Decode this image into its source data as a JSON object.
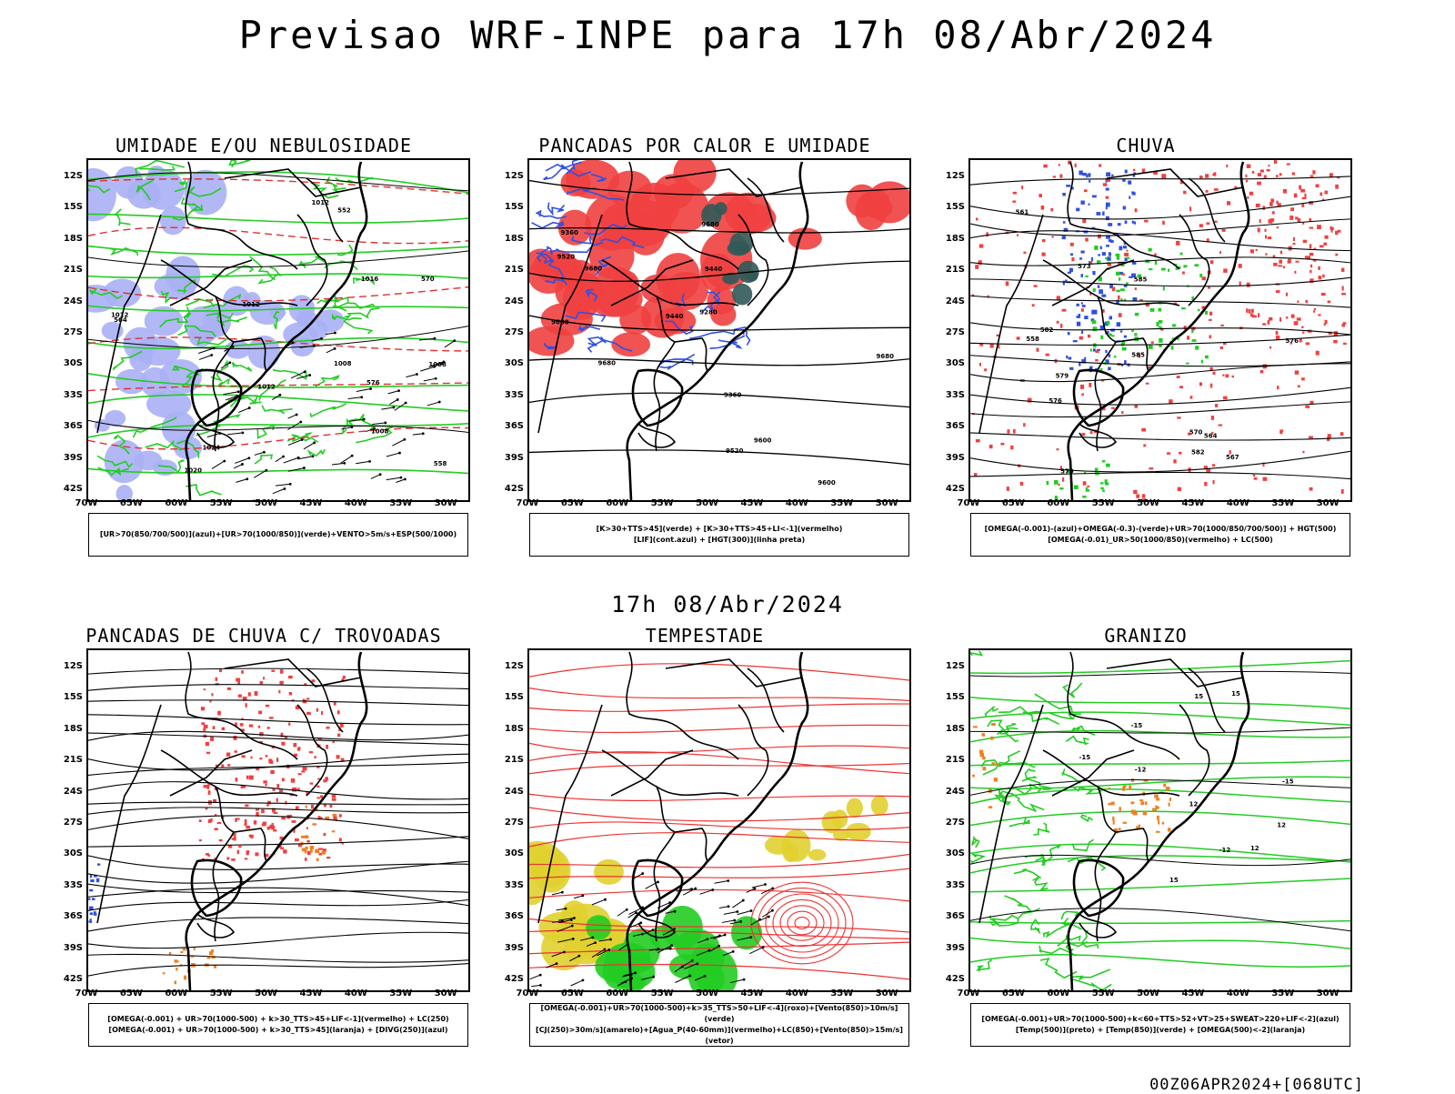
{
  "header": {
    "main_title": "Previsao WRF-INPE  para 17h 08/Abr/2024",
    "subtitle": "17h 08/Abr/2024",
    "run_stamp": "00Z06APR2024+[068UTC]"
  },
  "axes": {
    "latitudes": [
      "12S",
      "15S",
      "18S",
      "21S",
      "24S",
      "27S",
      "30S",
      "33S",
      "36S",
      "39S",
      "42S"
    ],
    "longitudes": [
      "70W",
      "65W",
      "60W",
      "55W",
      "50W",
      "45W",
      "40W",
      "35W",
      "30W"
    ]
  },
  "colors": {
    "humidity_blue": "#aab0f5",
    "humidity_green": "#22cc22",
    "instability_red": "#f04040",
    "lift_blue": "#3050e0",
    "storm_yellow": "#e0d030",
    "dark_teal": "#2f5a58",
    "hail_orange": "#f08020",
    "contour_black": "#000000"
  },
  "panels": [
    {
      "id": "umidade",
      "title": "UMIDADE E/OU NEBULOSIDADE",
      "legend_lines": [
        "[UR>70(850/700/500)](azul)+[UR>70(1000/850)](verde)+VENTO>5m/s+ESP(500/1000)"
      ],
      "contour_labels": [
        "1008",
        "1008",
        "1008",
        "1012",
        "1012",
        "1012",
        "1016",
        "1020",
        "1024",
        "1012",
        "576",
        "570",
        "564",
        "558",
        "552"
      ]
    },
    {
      "id": "pancadas_calor",
      "title": "PANCADAS POR CALOR E UMIDADE",
      "legend_lines": [
        "[K>30+TTS>45](verde) + [K>30+TTS>45+LI<-1](vermelho)",
        "[LIF](cont.azul) + [HGT(300)](linha preta)"
      ],
      "contour_labels": [
        "9680",
        "9680",
        "9680",
        "9680",
        "9600",
        "9600",
        "9600",
        "9520",
        "9520",
        "9440",
        "9440",
        "9360",
        "9360",
        "9280"
      ]
    },
    {
      "id": "chuva",
      "title": "CHUVA",
      "legend_lines": [
        "[OMEGA(-0.001)-(azul)+OMEGA(-0.3)-(verde)+UR>70(1000/850/700/500)] + HGT(500)",
        "[OMEGA(-0.01)_UR>50(1000/850)(vermelho) + LC(500)"
      ],
      "contour_labels": [
        "585",
        "585",
        "582",
        "582",
        "579",
        "579",
        "576",
        "576",
        "573",
        "570",
        "567",
        "564",
        "561",
        "558"
      ]
    },
    {
      "id": "pancadas_trovoadas",
      "title": "PANCADAS DE CHUVA C/ TROVOADAS",
      "legend_lines": [
        "[OMEGA(-0.001) + UR>70(1000-500) + k>30_TTS>45+LIF<-1](vermelho) + LC(250)",
        "[OMEGA(-0.001) + UR>70(1000-500) + k>30_TTS>45](laranja) + [DIVG(250)](azul)"
      ],
      "contour_labels": []
    },
    {
      "id": "tempestade",
      "title": "TEMPESTADE",
      "legend_lines": [
        "[OMEGA(-0.001)+UR>70(1000-500)+k>35_TTS>50+LIF<-4](roxo)+[Vento(850)>10m/s](verde)",
        "[CJ(250)>30m/s](amarelo)+[Agua_P(40-60mm)](vermelho)+LC(850)+[Vento(850)>15m/s](vetor)"
      ],
      "contour_labels": []
    },
    {
      "id": "granizo",
      "title": "GRANIZO",
      "legend_lines": [
        "[OMEGA(-0.001)+UR>70(1000-500)+k<60+TTS>52+VT>25+SWEAT>220+LIF<-2](azul)",
        "[Temp(500)](preto) + [Temp(850)](verde) + [OMEGA(500)<-2](laranja)"
      ],
      "contour_labels": [
        "-12",
        "-12",
        "-15",
        "-15",
        "-15",
        "12",
        "12",
        "12",
        "15",
        "15",
        "15"
      ]
    }
  ]
}
